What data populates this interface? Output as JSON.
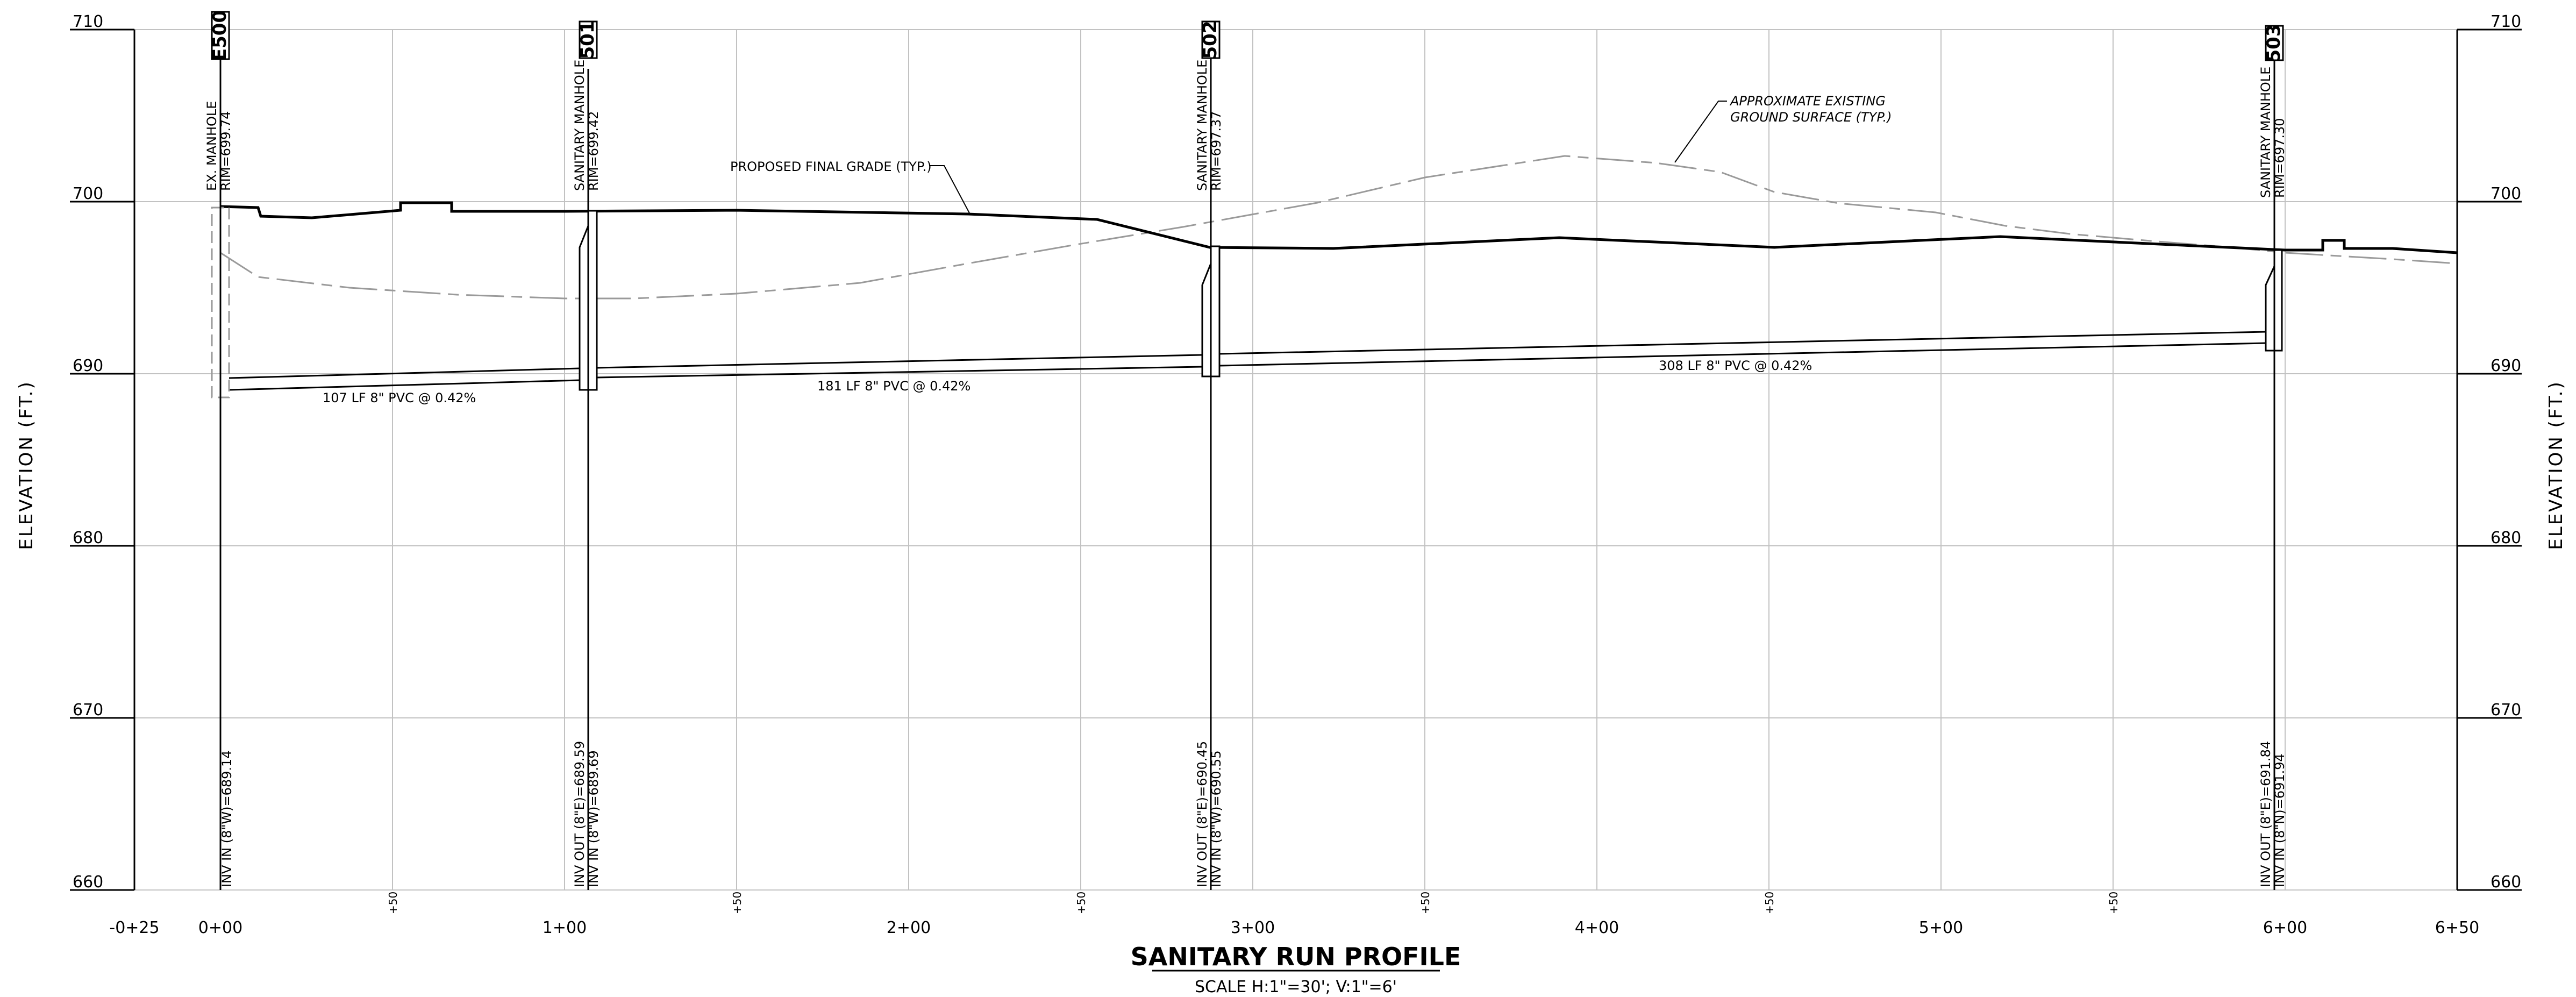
{
  "title": "SANITARY RUN PROFILE",
  "scale": "SCALE  H:1\"=30';  V:1\"=6'",
  "axis_label": "ELEVATION  (FT.)",
  "elevation_ticks": [
    "710",
    "700",
    "690",
    "680",
    "670",
    "660"
  ],
  "station_labels": [
    "-0+25",
    "0+00",
    "1+00",
    "2+00",
    "3+00",
    "4+00",
    "5+00",
    "6+00",
    "6+50"
  ],
  "half_station_label": "+50",
  "annotations": {
    "proposed_grade": "PROPOSED FINAL GRADE (TYP.)",
    "existing_ground_1": "APPROXIMATE EXISTING",
    "existing_ground_2": "GROUND SURFACE (TYP.)"
  },
  "structures": [
    {
      "id": "E500",
      "line1": "EX. MANHOLE",
      "line2": "RIM=699.74",
      "inv1": "INV IN  (8\"W)=689.14",
      "inv2": ""
    },
    {
      "id": "501",
      "line1": "SANITARY MANHOLE",
      "line2": "RIM=699.42",
      "inv1": "INV OUT  (8\"E)=689.59",
      "inv2": "INV IN  (8\"W)=689.69"
    },
    {
      "id": "502",
      "line1": "SANITARY MANHOLE",
      "line2": "RIM=697.37",
      "inv1": "INV OUT  (8\"E)=690.45",
      "inv2": "INV IN  (8\"W)=690.55"
    },
    {
      "id": "503",
      "line1": "SANITARY MANHOLE",
      "line2": "RIM=697.30",
      "inv1": "INV OUT  (8\"E)=691.84",
      "inv2": "INV IN  (8\"N)=691.94"
    }
  ],
  "pipes": [
    {
      "label": "107 LF 8\" PVC @ 0.42%"
    },
    {
      "label": "181 LF 8\" PVC @ 0.42%"
    },
    {
      "label": "308 LF 8\" PVC @ 0.42%"
    }
  ],
  "colors": {
    "line": "#000000",
    "existing_ground": "#9a9a9a",
    "grid": "#c2c2c2"
  }
}
